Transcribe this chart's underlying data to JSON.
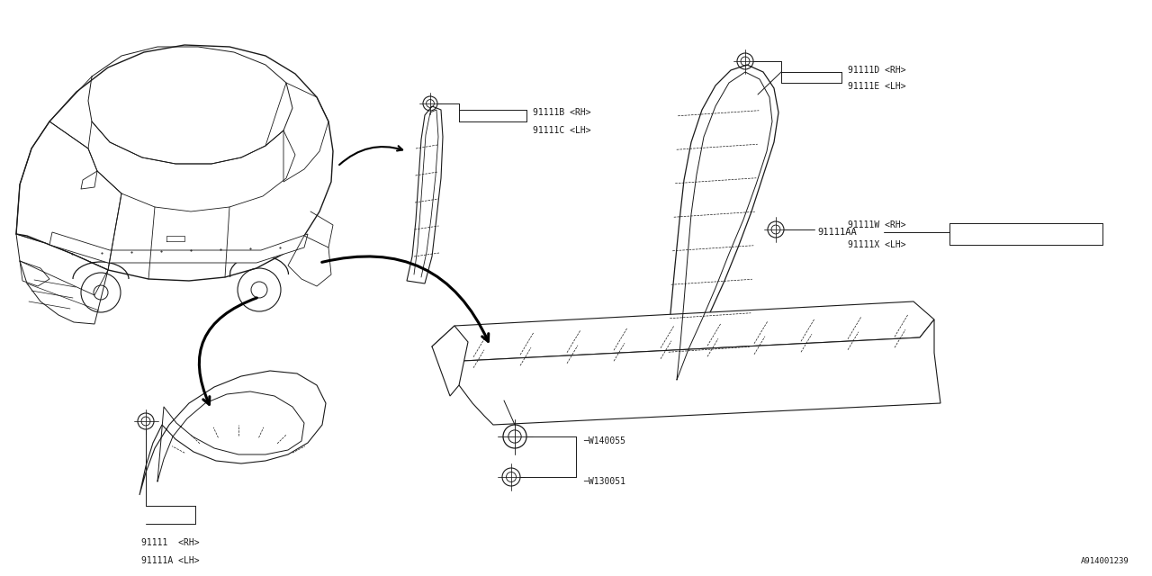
{
  "bg_color": "#ffffff",
  "line_color": "#1a1a1a",
  "text_color": "#1a1a1a",
  "fig_width": 12.8,
  "fig_height": 6.4,
  "watermark": "A914001239",
  "font_size": 7.0,
  "parts_labels": {
    "91111BC": "91111B <RH>\n91111C <LH>",
    "91111DE": "91111D <RH>\n91111E <LH>",
    "91111AA": "91111AA",
    "91111WX": "91111W <RH>\n91111X <LH>",
    "91111": "91111  <RH>\n91111A <LH>",
    "W140055": "W140055",
    "W130051": "W130051"
  }
}
